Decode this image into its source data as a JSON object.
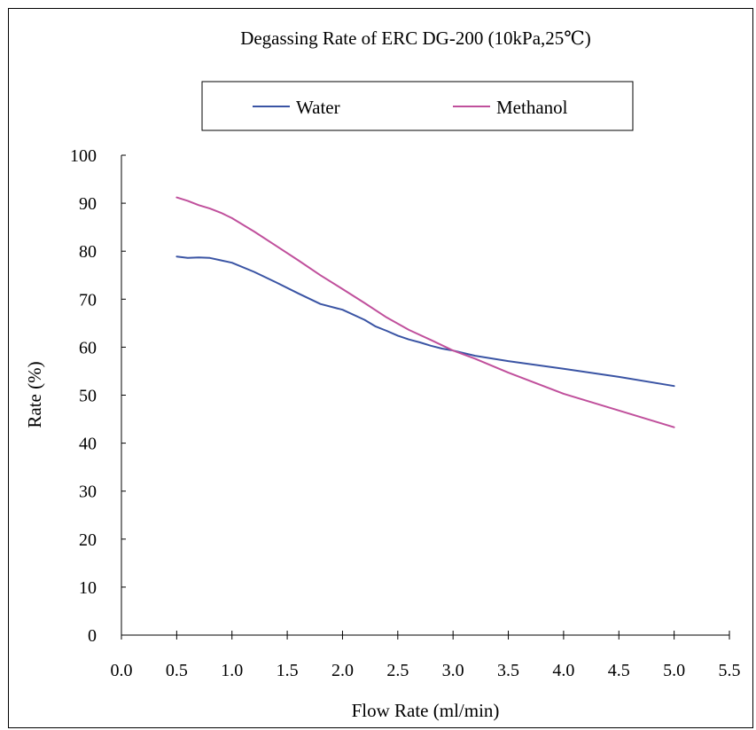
{
  "chart_data": {
    "type": "line",
    "title": "Degassing Rate of ERC DG-200 (10kPa,25℃)",
    "xlabel": "Flow Rate (ml/min)",
    "ylabel": "Rate (%)",
    "xlim": [
      0.0,
      5.5
    ],
    "ylim": [
      0,
      100
    ],
    "xticks": [
      "0.0",
      "0.5",
      "1.0",
      "1.5",
      "2.0",
      "2.5",
      "3.0",
      "3.5",
      "4.0",
      "4.5",
      "5.0",
      "5.5"
    ],
    "yticks": [
      "0",
      "10",
      "20",
      "30",
      "40",
      "50",
      "60",
      "70",
      "80",
      "90",
      "100"
    ],
    "grid": false,
    "legend_position": "top",
    "series": [
      {
        "name": "Water",
        "color": "#3a54a4",
        "x": [
          0.5,
          0.6,
          0.7,
          0.8,
          0.9,
          1.0,
          1.2,
          1.4,
          1.6,
          1.8,
          2.0,
          2.2,
          2.3,
          2.4,
          2.5,
          2.6,
          2.7,
          2.8,
          2.9,
          3.0,
          3.2,
          3.5,
          4.0,
          4.5,
          5.0
        ],
        "y": [
          78.9,
          78.6,
          78.7,
          78.6,
          78.1,
          77.6,
          75.7,
          73.5,
          71.2,
          69.0,
          67.8,
          65.7,
          64.3,
          63.4,
          62.4,
          61.6,
          61.0,
          60.3,
          59.7,
          59.3,
          58.2,
          57.1,
          55.5,
          53.8,
          51.9
        ]
      },
      {
        "name": "Methanol",
        "color": "#c0509c",
        "x": [
          0.5,
          0.6,
          0.7,
          0.8,
          0.9,
          1.0,
          1.2,
          1.4,
          1.6,
          1.8,
          2.0,
          2.2,
          2.4,
          2.6,
          2.8,
          3.0,
          3.2,
          3.5,
          4.0,
          4.5,
          5.0
        ],
        "y": [
          91.2,
          90.5,
          89.6,
          88.9,
          88.0,
          86.9,
          84.1,
          81.1,
          78.1,
          75.0,
          72.1,
          69.2,
          66.2,
          63.6,
          61.5,
          59.3,
          57.6,
          54.7,
          50.3,
          46.8,
          43.3
        ]
      }
    ]
  }
}
